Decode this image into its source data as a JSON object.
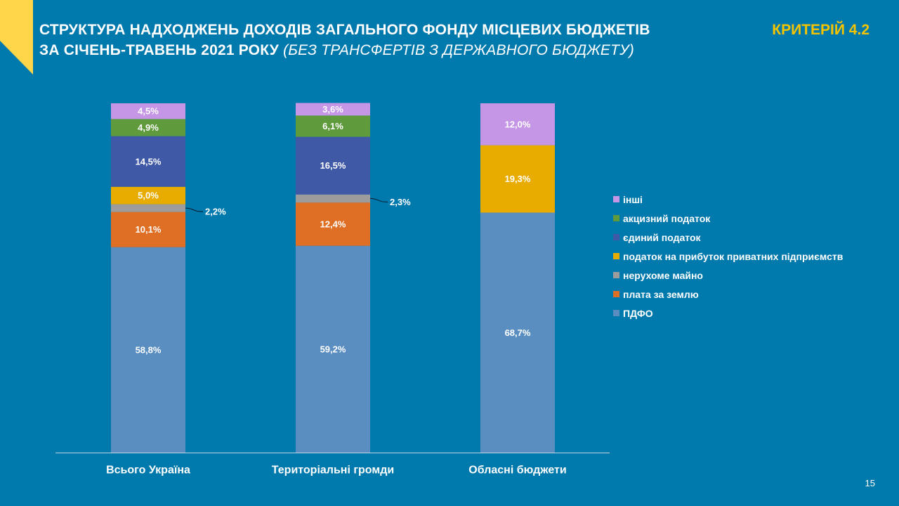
{
  "header": {
    "title_line1": "СТРУКТУРА НАДХОДЖЕНЬ ДОХОДІВ ЗАГАЛЬНОГО ФОНДУ МІСЦЕВИХ БЮДЖЕТІВ",
    "title_line2_main": "ЗА СІЧЕНЬ-ТРАВЕНЬ 2021 РОКУ",
    "title_line2_italic": "(БЕЗ ТРАНСФЕРТІВ З ДЕРЖАВНОГО БЮДЖЕТУ)",
    "criterion": "КРИТЕРІЙ 4.2"
  },
  "page_number": "15",
  "colors": {
    "background": "#0079ad",
    "accent_yellow": "#f5c400",
    "axis": "#bfd6e6"
  },
  "chart_data": {
    "type": "bar",
    "stacked": true,
    "normalized_100_percent": true,
    "title": "",
    "xlabel": "",
    "ylabel": "",
    "ylim": [
      0,
      100
    ],
    "grid": false,
    "legend_position": "right",
    "categories": [
      "Всього Україна",
      "Територіальні громди",
      "Обласні бюджети"
    ],
    "series": [
      {
        "name": "ПДФО",
        "color": "#5a8ec1",
        "values": [
          58.8,
          59.2,
          68.7
        ],
        "labels": [
          "58,8%",
          "59,2%",
          "68,7%"
        ]
      },
      {
        "name": "плата за землю",
        "color": "#df6f25",
        "values": [
          10.1,
          12.4,
          0
        ],
        "labels": [
          "10,1%",
          "12,4%",
          ""
        ]
      },
      {
        "name": "нерухоме майно",
        "color": "#9c9c9c",
        "values": [
          2.2,
          2.3,
          0
        ],
        "labels": [
          "2,2%",
          "2,3%",
          ""
        ],
        "callout": true
      },
      {
        "name": "податок на прибуток приватних підприємств",
        "color": "#e8ab00",
        "values": [
          5.0,
          0,
          19.3
        ],
        "labels": [
          "5,0%",
          "",
          "19,3%"
        ]
      },
      {
        "name": "єдиний податок",
        "color": "#3f59a6",
        "values": [
          14.5,
          16.5,
          0
        ],
        "labels": [
          "14,5%",
          "16,5%",
          ""
        ]
      },
      {
        "name": "акцизний податок",
        "color": "#5f9a3d",
        "values": [
          4.9,
          6.1,
          0
        ],
        "labels": [
          "4,9%",
          "6,1%",
          ""
        ]
      },
      {
        "name": "інші",
        "color": "#c596e6",
        "values": [
          4.5,
          3.6,
          12.0
        ],
        "labels": [
          "4,5%",
          "3,6%",
          "12,0%"
        ]
      }
    ],
    "legend_order": [
      "інші",
      "акцизний податок",
      "єдиний податок",
      "податок на прибуток приватних підприємств",
      "нерухоме майно",
      "плата за землю",
      "ПДФО"
    ]
  }
}
